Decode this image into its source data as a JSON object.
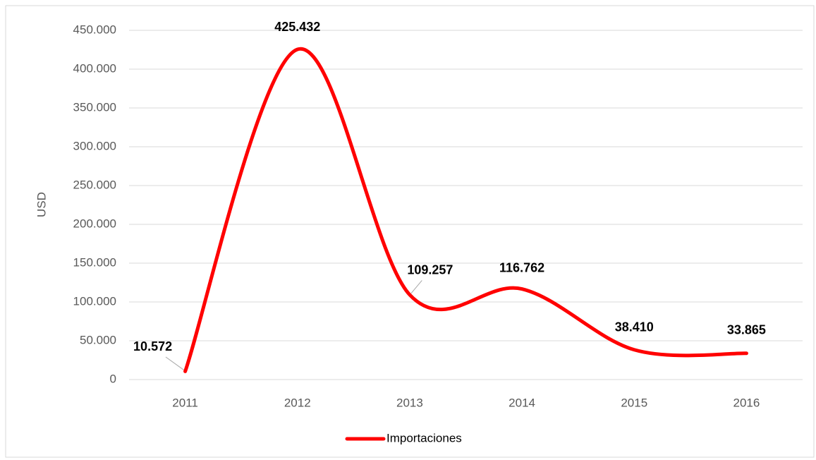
{
  "chart_data": {
    "type": "line",
    "categories": [
      "2011",
      "2012",
      "2013",
      "2014",
      "2015",
      "2016"
    ],
    "series": [
      {
        "name": "Importaciones",
        "color": "#ff0000",
        "values": [
          10572,
          425432,
          109257,
          116762,
          38410,
          33865
        ],
        "value_labels": [
          "10.572",
          "425.432",
          "109.257",
          "116.762",
          "38.410",
          "33.865"
        ]
      }
    ],
    "y_label": "USD",
    "ylim": [
      0,
      450000
    ],
    "yticks": [
      {
        "value": 0,
        "label": "0"
      },
      {
        "value": 50000,
        "label": "50.000"
      },
      {
        "value": 100000,
        "label": "100.000"
      },
      {
        "value": 150000,
        "label": "150.000"
      },
      {
        "value": 200000,
        "label": "200.000"
      },
      {
        "value": 250000,
        "label": "250.000"
      },
      {
        "value": 300000,
        "label": "300.000"
      },
      {
        "value": 350000,
        "label": "350.000"
      },
      {
        "value": 400000,
        "label": "400.000"
      },
      {
        "value": 450000,
        "label": "450.000"
      }
    ],
    "grid": true,
    "smooth": true,
    "legend": "bottom"
  }
}
